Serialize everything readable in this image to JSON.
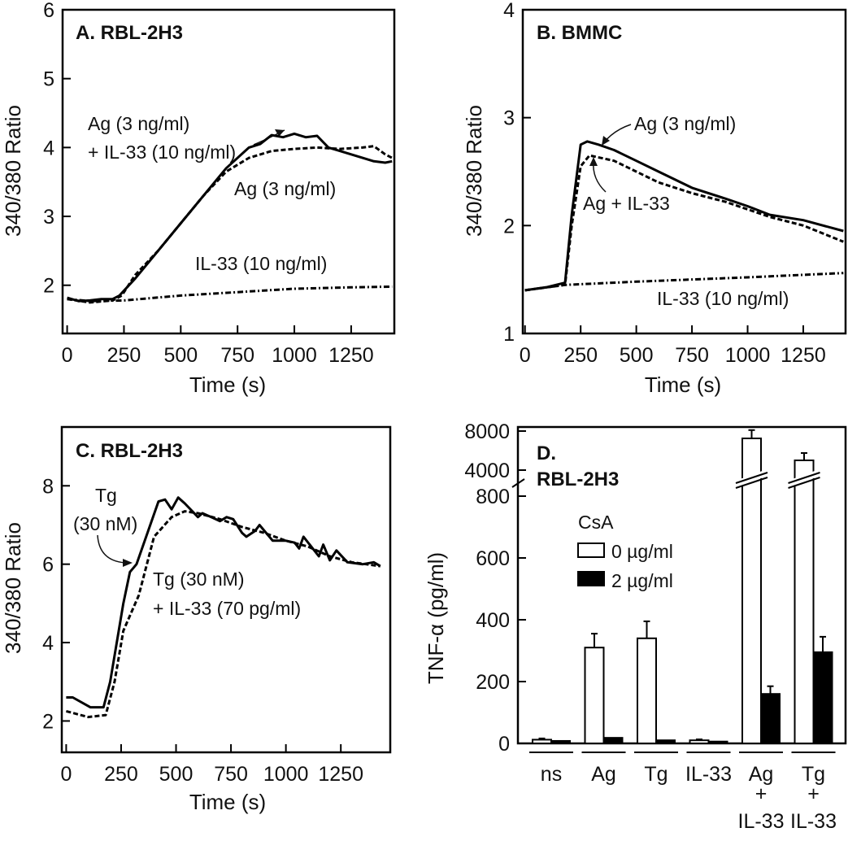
{
  "chart_data": [
    {
      "id": "A",
      "type": "line",
      "title": "A. RBL-2H3",
      "xlabel": "Time (s)",
      "ylabel": "340/380 Ratio",
      "xlim": [
        -20,
        1440
      ],
      "ylim": [
        1.3,
        6
      ],
      "xticks": [
        0,
        250,
        500,
        750,
        1000,
        1250
      ],
      "yticks": [
        2,
        3,
        4,
        5,
        6
      ],
      "series": [
        {
          "name": "Ag (3 ng/ml) + IL-33 (10 ng/ml)",
          "style": "solid",
          "x": [
            0,
            50,
            100,
            150,
            200,
            230,
            300,
            400,
            500,
            600,
            700,
            800,
            850,
            900,
            950,
            1000,
            1050,
            1100,
            1150,
            1200,
            1250,
            1300,
            1350,
            1400,
            1430
          ],
          "y": [
            1.82,
            1.77,
            1.78,
            1.8,
            1.8,
            1.85,
            2.1,
            2.5,
            2.9,
            3.3,
            3.7,
            4.0,
            4.05,
            4.18,
            4.15,
            4.2,
            4.15,
            4.17,
            4.0,
            3.95,
            3.9,
            3.85,
            3.8,
            3.78,
            3.8
          ]
        },
        {
          "name": "Ag (3 ng/ml)",
          "style": "dashed",
          "x": [
            0,
            100,
            200,
            240,
            300,
            400,
            500,
            600,
            700,
            800,
            900,
            1000,
            1100,
            1200,
            1300,
            1350,
            1400,
            1430
          ],
          "y": [
            1.8,
            1.75,
            1.78,
            1.85,
            2.15,
            2.5,
            2.9,
            3.3,
            3.65,
            3.85,
            3.95,
            3.98,
            4.0,
            3.98,
            4.0,
            4.02,
            3.9,
            3.85
          ]
        },
        {
          "name": "IL-33 (10 ng/ml)",
          "style": "dashdot",
          "x": [
            0,
            100,
            250,
            500,
            750,
            1000,
            1250,
            1430
          ],
          "y": [
            1.8,
            1.77,
            1.78,
            1.85,
            1.9,
            1.95,
            1.97,
            1.98
          ]
        }
      ],
      "annotations": [
        "Ag (3 ng/ml)",
        "+ IL-33 (10 ng/ml)",
        "Ag (3 ng/ml)",
        "IL-33 (10 ng/ml)"
      ]
    },
    {
      "id": "B",
      "type": "line",
      "title": "B. BMMC",
      "xlabel": "Time (s)",
      "ylabel": "340/380 Ratio",
      "xlim": [
        -10,
        1440
      ],
      "ylim": [
        1,
        4
      ],
      "xticks": [
        0,
        250,
        500,
        750,
        1000,
        1250
      ],
      "yticks": [
        1,
        2,
        3,
        4
      ],
      "series": [
        {
          "name": "Ag (3 ng/ml)",
          "style": "solid",
          "x": [
            0,
            100,
            180,
            210,
            250,
            280,
            330,
            400,
            500,
            600,
            750,
            900,
            1000,
            1100,
            1250,
            1430
          ],
          "y": [
            1.4,
            1.43,
            1.47,
            2.1,
            2.75,
            2.78,
            2.75,
            2.7,
            2.6,
            2.5,
            2.35,
            2.25,
            2.18,
            2.1,
            2.05,
            1.95
          ]
        },
        {
          "name": "Ag + IL-33",
          "style": "dashed",
          "x": [
            0,
            180,
            210,
            250,
            290,
            400,
            500,
            600,
            750,
            900,
            1000,
            1100,
            1250,
            1430
          ],
          "y": [
            1.4,
            1.45,
            2.0,
            2.55,
            2.65,
            2.6,
            2.5,
            2.4,
            2.3,
            2.22,
            2.15,
            2.08,
            2.0,
            1.85
          ]
        },
        {
          "name": "IL-33 (10 ng/ml)",
          "style": "dashdot",
          "x": [
            0,
            180,
            500,
            1000,
            1430
          ],
          "y": [
            1.4,
            1.45,
            1.48,
            1.52,
            1.56
          ]
        }
      ],
      "annotations": [
        "Ag (3 ng/ml)",
        "Ag + IL-33",
        "IL-33 (10 ng/ml)"
      ]
    },
    {
      "id": "C",
      "type": "line",
      "title": "C. RBL-2H3",
      "xlabel": "Time (s)",
      "ylabel": "340/380 Ratio",
      "xlim": [
        -20,
        1475
      ],
      "ylim": [
        1.2,
        9.5
      ],
      "xticks": [
        0,
        250,
        500,
        750,
        1000,
        1250
      ],
      "yticks": [
        2,
        4,
        6,
        8
      ],
      "series": [
        {
          "name": "Tg (30 nM)",
          "style": "solid",
          "x": [
            0,
            30,
            110,
            170,
            200,
            260,
            290,
            320,
            420,
            450,
            480,
            510,
            540,
            600,
            620,
            660,
            700,
            730,
            760,
            800,
            820,
            860,
            880,
            940,
            1000,
            1040,
            1060,
            1080,
            1150,
            1170,
            1200,
            1230,
            1280,
            1350,
            1400,
            1430
          ],
          "y": [
            2.6,
            2.6,
            2.35,
            2.35,
            3.0,
            5.0,
            5.8,
            6.0,
            7.6,
            7.65,
            7.4,
            7.7,
            7.55,
            7.2,
            7.3,
            7.2,
            7.1,
            7.2,
            7.15,
            6.8,
            6.7,
            6.85,
            7.0,
            6.6,
            6.6,
            6.55,
            6.4,
            6.7,
            6.2,
            6.5,
            6.1,
            6.35,
            6.05,
            6.0,
            6.05,
            5.95
          ]
        },
        {
          "name": "Tg (30 nM) + IL-33 (70 pg/ml)",
          "style": "dashed",
          "x": [
            0,
            100,
            180,
            220,
            260,
            330,
            400,
            480,
            540,
            600,
            700,
            800,
            900,
            1000,
            1100,
            1200,
            1300,
            1430
          ],
          "y": [
            2.25,
            2.1,
            2.15,
            3.0,
            4.3,
            5.2,
            6.7,
            7.2,
            7.35,
            7.3,
            7.15,
            6.95,
            6.8,
            6.6,
            6.45,
            6.2,
            6.05,
            5.95
          ]
        }
      ],
      "annotations": [
        "Tg",
        "(30 nM)",
        "Tg (30 nM)",
        "+ IL-33 (70 pg/ml)"
      ]
    },
    {
      "id": "D",
      "type": "bar",
      "title": "D.",
      "subtitle": "RBL-2H3",
      "ylabel": "TNF-α (pg/ml)",
      "ylim": [
        0,
        8000
      ],
      "axis_break": [
        800,
        4000
      ],
      "yticks": [
        0,
        200,
        400,
        600,
        800,
        4000,
        8000
      ],
      "categories": [
        "ns",
        "Ag",
        "Tg",
        "IL-33",
        "Ag + IL-33",
        "Tg + IL-33"
      ],
      "category_lines": [
        [
          "ns"
        ],
        [
          "Ag"
        ],
        [
          "Tg"
        ],
        [
          "IL-33"
        ],
        [
          "Ag",
          "+",
          "IL-33"
        ],
        [
          "Tg",
          "+",
          "IL-33"
        ]
      ],
      "legend_title": "CsA",
      "legend_position": "center-left",
      "series": [
        {
          "name": "0 µg/ml",
          "fill": "#ffffff",
          "values": [
            12,
            310,
            340,
            10,
            7250,
            5000
          ],
          "errors": [
            4,
            45,
            55,
            3,
            850,
            750
          ]
        },
        {
          "name": "2 µg/ml",
          "fill": "#000000",
          "values": [
            8,
            18,
            10,
            6,
            160,
            295
          ],
          "errors": [
            0,
            0,
            0,
            0,
            25,
            50
          ]
        }
      ]
    }
  ]
}
